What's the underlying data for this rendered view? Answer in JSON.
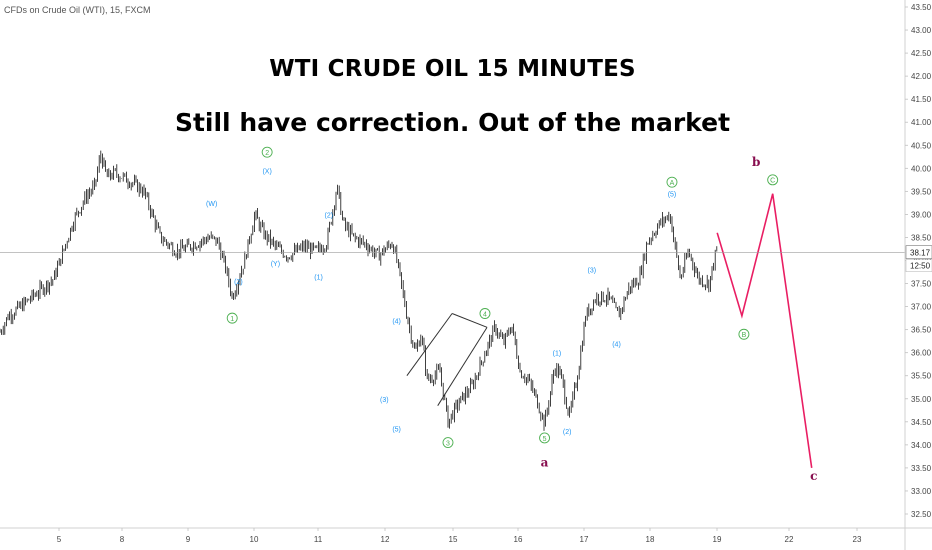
{
  "symbol_label": "CFDs on Crude Oil (WTI), 15, FXCM",
  "chart_data": {
    "type": "candlestick",
    "title": "WTI CRUDE OIL 15  MINUTES",
    "subtitle": "Still have correction. Out of the market",
    "x_axis": {
      "tick_labels": [
        "5",
        "8",
        "9",
        "10",
        "11",
        "12",
        "15",
        "16",
        "17",
        "18",
        "19",
        "22",
        "23"
      ],
      "tick_index": [
        0,
        1,
        2,
        3,
        4,
        5,
        6,
        7,
        8,
        9,
        10,
        11,
        12
      ]
    },
    "y_axis": {
      "ylim": [
        32.2,
        43.6
      ],
      "tick_labels": [
        "32.50",
        "33.00",
        "33.50",
        "34.00",
        "34.50",
        "35.00",
        "35.50",
        "36.00",
        "36.50",
        "37.00",
        "37.50",
        "38.00",
        "38.50",
        "39.00",
        "39.50",
        "40.00",
        "40.50",
        "41.00",
        "41.50",
        "42.00",
        "42.50",
        "43.00",
        "43.50"
      ],
      "last_price_label": "38.17",
      "last_price": 38.17,
      "time_label": "12:50"
    },
    "price_path": [
      [
        4.4,
        36.45
      ],
      [
        4.6,
        36.8
      ],
      [
        4.9,
        37.0
      ],
      [
        5.3,
        37.3
      ],
      [
        5.7,
        37.6
      ],
      [
        5.9,
        38.1
      ],
      [
        6.2,
        38.9
      ],
      [
        6.5,
        39.4
      ],
      [
        6.7,
        39.6
      ],
      [
        6.85,
        40.3
      ],
      [
        7.0,
        39.8
      ],
      [
        7.2,
        39.9
      ],
      [
        7.6,
        39.7
      ],
      [
        7.9,
        39.5
      ],
      [
        8.3,
        38.5
      ],
      [
        8.7,
        38.2
      ],
      [
        9.0,
        38.3
      ],
      [
        9.5,
        38.5
      ],
      [
        9.7,
        38.4
      ],
      [
        9.9,
        37.8
      ],
      [
        10.05,
        37.2
      ],
      [
        10.35,
        38.0
      ],
      [
        10.6,
        39.0
      ],
      [
        10.8,
        38.6
      ],
      [
        11.1,
        38.3
      ],
      [
        11.4,
        38.1
      ],
      [
        11.6,
        38.2
      ],
      [
        11.8,
        38.3
      ],
      [
        12.1,
        38.2
      ],
      [
        12.35,
        38.4
      ],
      [
        12.6,
        39.6
      ],
      [
        12.75,
        38.8
      ],
      [
        13.0,
        38.5
      ],
      [
        13.3,
        38.35
      ],
      [
        13.6,
        38.1
      ],
      [
        13.95,
        38.4
      ],
      [
        14.1,
        37.8
      ],
      [
        14.3,
        36.8
      ],
      [
        14.5,
        36.0
      ],
      [
        14.65,
        36.4
      ],
      [
        14.8,
        35.4
      ],
      [
        15.1,
        35.6
      ],
      [
        15.3,
        34.5
      ],
      [
        15.55,
        34.9
      ],
      [
        15.9,
        35.3
      ],
      [
        16.2,
        36.0
      ],
      [
        16.45,
        36.55
      ],
      [
        16.65,
        36.2
      ],
      [
        16.85,
        36.6
      ],
      [
        17.05,
        35.6
      ],
      [
        17.25,
        35.4
      ],
      [
        17.45,
        35.0
      ],
      [
        17.65,
        34.45
      ],
      [
        17.9,
        35.7
      ],
      [
        18.05,
        35.5
      ],
      [
        18.25,
        34.6
      ],
      [
        18.45,
        35.5
      ],
      [
        18.65,
        36.8
      ],
      [
        18.9,
        37.2
      ],
      [
        19.2,
        37.2
      ],
      [
        19.45,
        36.8
      ],
      [
        19.7,
        37.4
      ],
      [
        19.95,
        37.6
      ],
      [
        20.15,
        38.4
      ],
      [
        20.45,
        38.8
      ],
      [
        20.7,
        39.0
      ],
      [
        20.95,
        37.6
      ],
      [
        21.15,
        38.2
      ],
      [
        21.4,
        37.6
      ],
      [
        21.65,
        37.5
      ],
      [
        21.85,
        38.3
      ]
    ],
    "projection": {
      "color": "#e91e63",
      "points": [
        [
          21.85,
          38.6
        ],
        [
          22.45,
          36.8
        ],
        [
          23.2,
          39.45
        ],
        [
          24.15,
          33.5
        ]
      ]
    },
    "wave_labels": [
      {
        "text": "1",
        "x": 10.05,
        "y": 36.75,
        "circled": true,
        "color": "#4caf50"
      },
      {
        "text": "2",
        "x": 10.9,
        "y": 40.35,
        "circled": true,
        "color": "#4caf50"
      },
      {
        "text": "3",
        "x": 15.3,
        "y": 34.05,
        "circled": true,
        "color": "#4caf50"
      },
      {
        "text": "4",
        "x": 16.2,
        "y": 36.85,
        "circled": true,
        "color": "#4caf50"
      },
      {
        "text": "5",
        "x": 17.65,
        "y": 34.15,
        "circled": true,
        "color": "#4caf50"
      },
      {
        "text": "A",
        "x": 20.75,
        "y": 39.7,
        "circled": true,
        "color": "#4caf50"
      },
      {
        "text": "B",
        "x": 22.5,
        "y": 36.4,
        "circled": true,
        "color": "#4caf50"
      },
      {
        "text": "C",
        "x": 23.2,
        "y": 39.75,
        "circled": true,
        "color": "#4caf50"
      },
      {
        "text": "(W)",
        "x": 9.55,
        "y": 39.25,
        "circled": false,
        "color": "#2196f3"
      },
      {
        "text": "(X)",
        "x": 10.9,
        "y": 39.95,
        "circled": false,
        "color": "#2196f3"
      },
      {
        "text": "(2)",
        "x": 10.2,
        "y": 37.55,
        "circled": false,
        "color": "#2196f3"
      },
      {
        "text": "(Y)",
        "x": 11.1,
        "y": 37.95,
        "circled": false,
        "color": "#2196f3"
      },
      {
        "text": "(2)",
        "x": 12.4,
        "y": 39.0,
        "circled": false,
        "color": "#2196f3"
      },
      {
        "text": "(1)",
        "x": 12.15,
        "y": 37.65,
        "circled": false,
        "color": "#2196f3"
      },
      {
        "text": "(4)",
        "x": 14.05,
        "y": 36.7,
        "circled": false,
        "color": "#2196f3"
      },
      {
        "text": "(3)",
        "x": 13.75,
        "y": 35.0,
        "circled": false,
        "color": "#2196f3"
      },
      {
        "text": "(5)",
        "x": 14.05,
        "y": 34.35,
        "circled": false,
        "color": "#2196f3"
      },
      {
        "text": "(1)",
        "x": 17.95,
        "y": 36.0,
        "circled": false,
        "color": "#2196f3"
      },
      {
        "text": "(2)",
        "x": 18.2,
        "y": 34.3,
        "circled": false,
        "color": "#2196f3"
      },
      {
        "text": "(3)",
        "x": 18.8,
        "y": 37.8,
        "circled": false,
        "color": "#2196f3"
      },
      {
        "text": "(4)",
        "x": 19.4,
        "y": 36.2,
        "circled": false,
        "color": "#2196f3"
      },
      {
        "text": "(5)",
        "x": 20.75,
        "y": 39.45,
        "circled": false,
        "color": "#2196f3"
      },
      {
        "text": "a",
        "x": 17.65,
        "y": 33.6,
        "circled": false,
        "color": "#880e4f",
        "bold": true
      },
      {
        "text": "b",
        "x": 22.8,
        "y": 40.12,
        "circled": false,
        "color": "#880e4f",
        "bold": true
      },
      {
        "text": "c",
        "x": 24.2,
        "y": 33.3,
        "circled": false,
        "color": "#880e4f",
        "bold": true
      }
    ],
    "triangle": {
      "color": "#333333",
      "lines": [
        [
          [
            15.4,
            36.85
          ],
          [
            16.25,
            36.55
          ]
        ],
        [
          [
            15.4,
            36.85
          ],
          [
            14.3,
            35.5
          ]
        ],
        [
          [
            16.25,
            36.55
          ],
          [
            15.05,
            34.85
          ]
        ]
      ]
    },
    "grid": false,
    "legend": "none"
  }
}
